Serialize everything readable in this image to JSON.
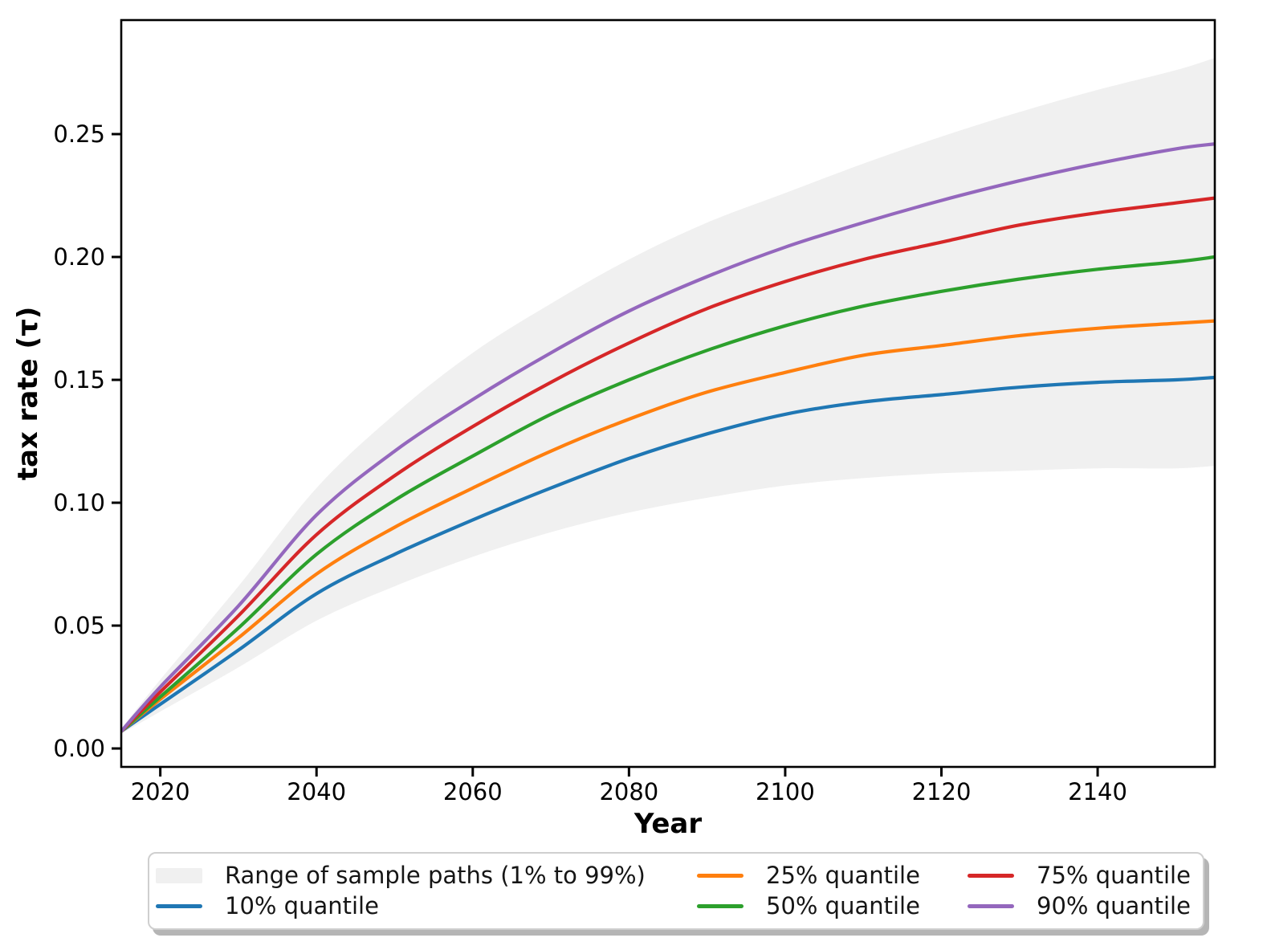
{
  "figure": {
    "background": "#ffffff",
    "axes_color": "#000000",
    "band_color": "#f0f0f0"
  },
  "chart_data": {
    "type": "line",
    "title": "",
    "xlabel": "Year",
    "ylabel": "tax rate (τ)",
    "grid": false,
    "legend_position": "below-axes",
    "xlim": [
      2015,
      2155
    ],
    "ylim": [
      -0.0075,
      0.2964
    ],
    "x_ticks": {
      "values": [
        2020,
        2040,
        2060,
        2080,
        2100,
        2120,
        2140
      ],
      "labels": [
        "2020",
        "2040",
        "2060",
        "2080",
        "2100",
        "2120",
        "2140"
      ]
    },
    "y_ticks": {
      "values": [
        0.0,
        0.05,
        0.1,
        0.15,
        0.2,
        0.25
      ],
      "labels": [
        "0.00",
        "0.05",
        "0.10",
        "0.15",
        "0.20",
        "0.25"
      ]
    },
    "x": [
      2015,
      2020,
      2030,
      2040,
      2050,
      2060,
      2070,
      2080,
      2090,
      2100,
      2110,
      2120,
      2130,
      2140,
      2150,
      2155
    ],
    "band": {
      "name": "Range of sample paths (1% to 99%)",
      "color": "#f0f0f0",
      "low": [
        0.006,
        0.015,
        0.033,
        0.052,
        0.066,
        0.078,
        0.088,
        0.096,
        0.102,
        0.107,
        0.11,
        0.112,
        0.113,
        0.114,
        0.114,
        0.115
      ],
      "high": [
        0.008,
        0.028,
        0.066,
        0.106,
        0.136,
        0.161,
        0.181,
        0.199,
        0.214,
        0.226,
        0.238,
        0.249,
        0.259,
        0.268,
        0.276,
        0.281
      ]
    },
    "series": [
      {
        "name": "10% quantile",
        "color": "#1f77b4",
        "values": [
          0.007,
          0.018,
          0.04,
          0.063,
          0.079,
          0.093,
          0.106,
          0.118,
          0.128,
          0.136,
          0.141,
          0.144,
          0.147,
          0.149,
          0.15,
          0.151
        ]
      },
      {
        "name": "25% quantile",
        "color": "#ff7f0e",
        "values": [
          0.007,
          0.02,
          0.045,
          0.071,
          0.09,
          0.106,
          0.121,
          0.134,
          0.145,
          0.153,
          0.16,
          0.164,
          0.168,
          0.171,
          0.173,
          0.174
        ]
      },
      {
        "name": "50% quantile",
        "color": "#2ca02c",
        "values": [
          0.007,
          0.021,
          0.049,
          0.079,
          0.101,
          0.119,
          0.136,
          0.15,
          0.162,
          0.172,
          0.18,
          0.186,
          0.191,
          0.195,
          0.198,
          0.2
        ]
      },
      {
        "name": "75% quantile",
        "color": "#d62728",
        "values": [
          0.007,
          0.023,
          0.054,
          0.087,
          0.111,
          0.131,
          0.149,
          0.165,
          0.179,
          0.19,
          0.199,
          0.206,
          0.213,
          0.218,
          0.222,
          0.224
        ]
      },
      {
        "name": "90% quantile",
        "color": "#9467bd",
        "values": [
          0.007,
          0.025,
          0.058,
          0.095,
          0.121,
          0.142,
          0.161,
          0.178,
          0.192,
          0.204,
          0.214,
          0.223,
          0.231,
          0.238,
          0.244,
          0.246
        ]
      }
    ]
  },
  "legend": {
    "band_entry_label": "Range of sample paths (1% to 99%)",
    "entry_labels": [
      "10% quantile",
      "25% quantile",
      "50% quantile",
      "75% quantile",
      "90% quantile"
    ]
  }
}
